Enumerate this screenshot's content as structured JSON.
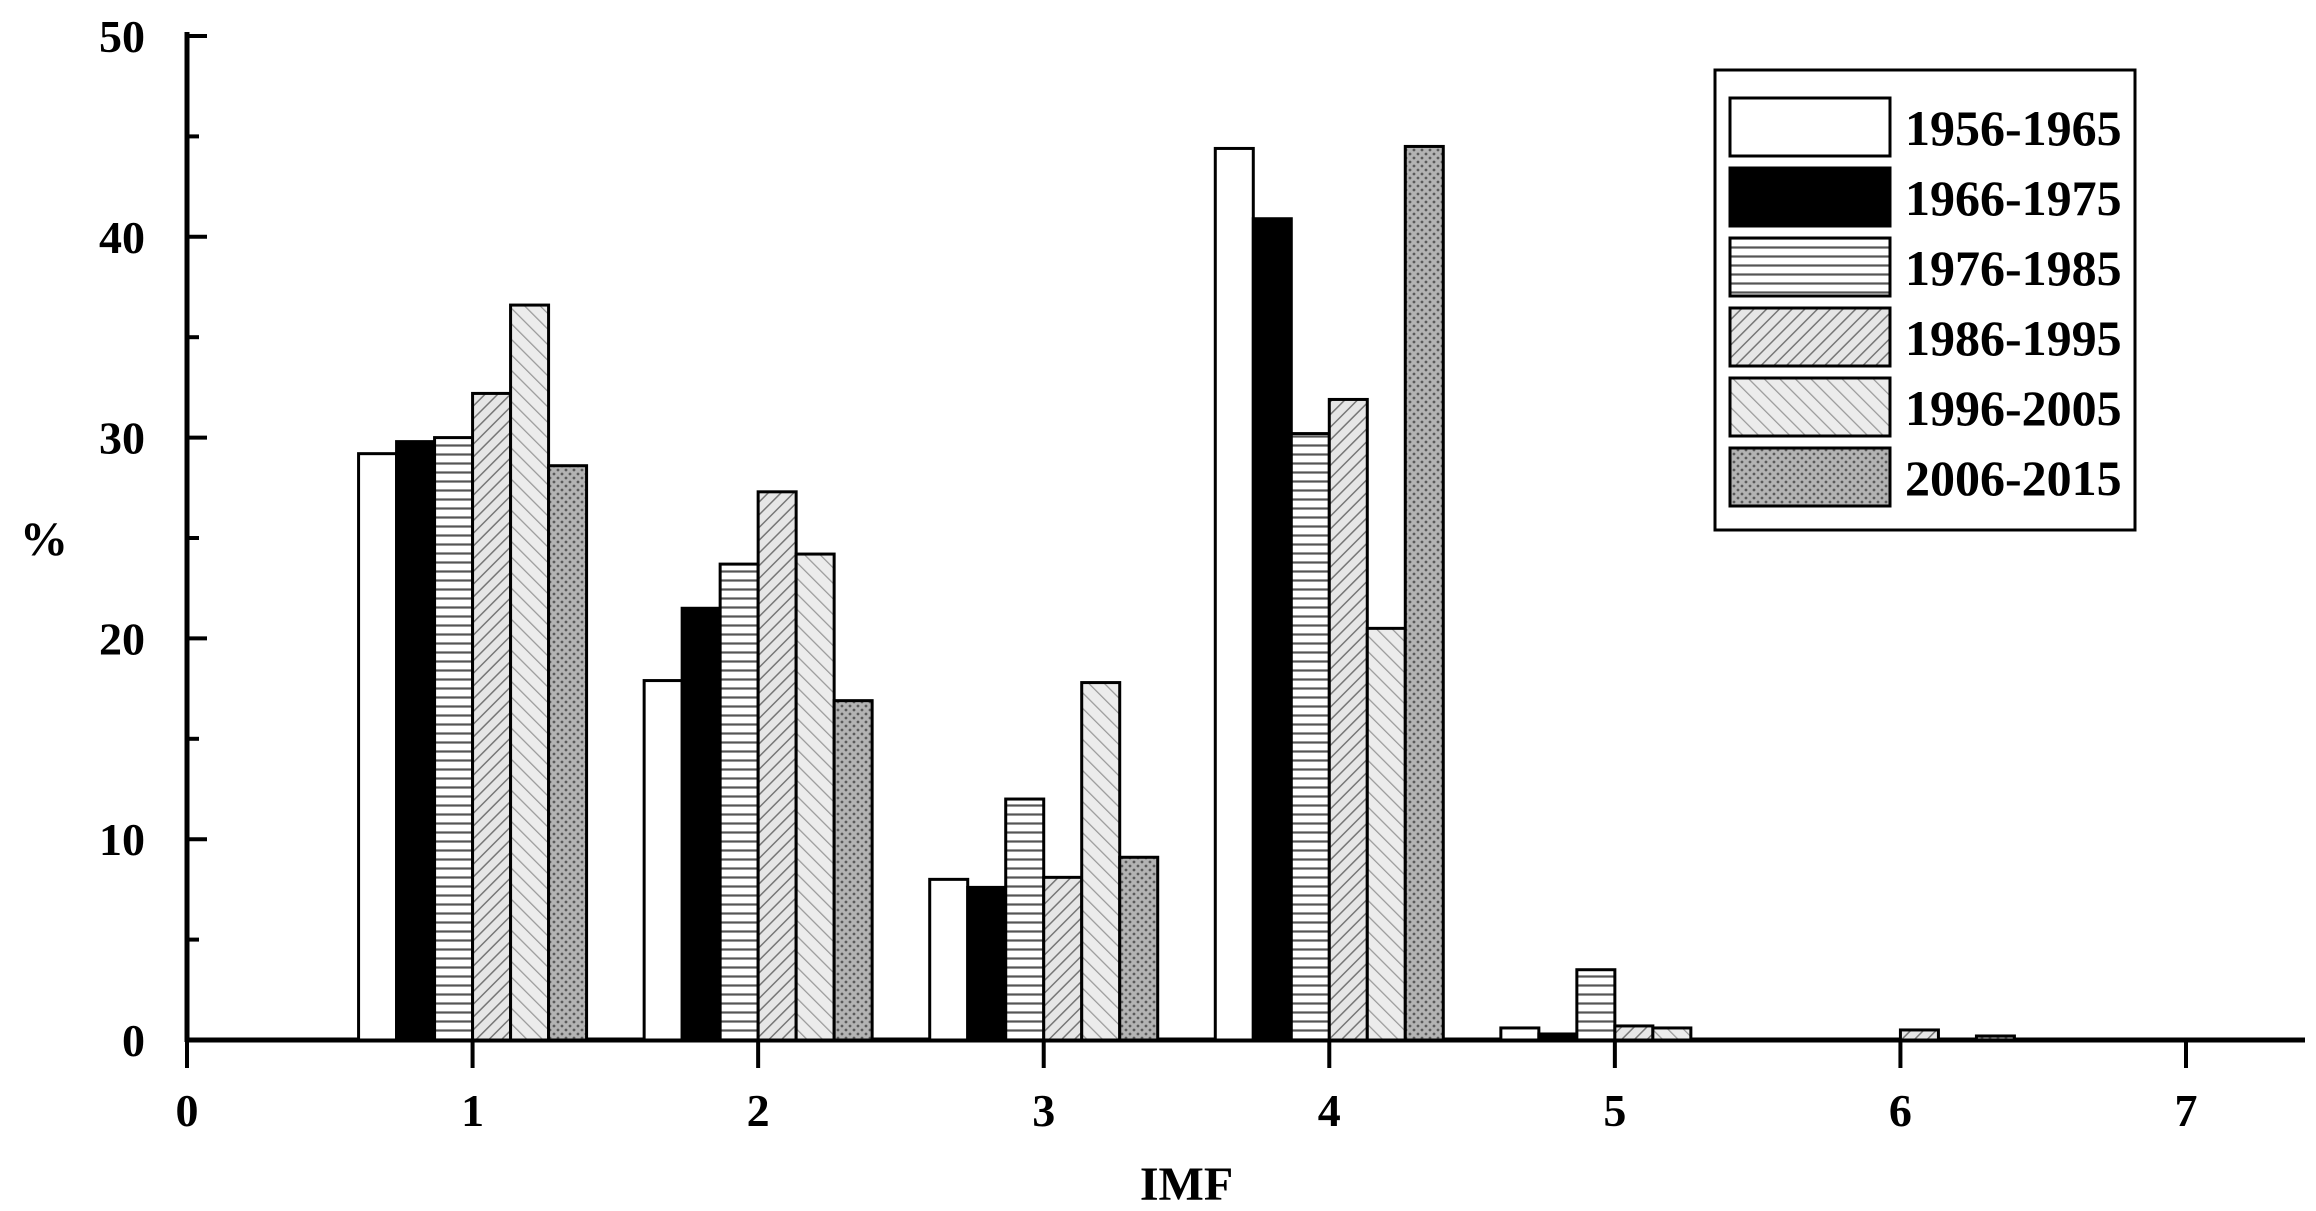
{
  "chart_data": {
    "type": "bar",
    "title": "",
    "xlabel": "IMF",
    "ylabel": "%",
    "xlim": [
      0,
      7
    ],
    "ylim": [
      0,
      50
    ],
    "categories": [
      "1",
      "2",
      "3",
      "4",
      "5",
      "6"
    ],
    "x_ticks": [
      "0",
      "1",
      "2",
      "3",
      "4",
      "5",
      "6",
      "7"
    ],
    "y_ticks": [
      "0",
      "10",
      "20",
      "30",
      "40",
      "50"
    ],
    "grid": false,
    "legend_position": "top-right",
    "series": [
      {
        "name": "1956-1965",
        "fill": "white",
        "values": [
          29.2,
          17.9,
          8.0,
          44.4,
          0.6,
          0.0
        ]
      },
      {
        "name": "1966-1975",
        "fill": "black",
        "values": [
          29.8,
          21.5,
          7.6,
          40.9,
          0.3,
          0.0
        ]
      },
      {
        "name": "1976-1985",
        "fill": "horizontal-lines",
        "values": [
          30.0,
          23.7,
          12.0,
          30.2,
          3.5,
          0.0
        ]
      },
      {
        "name": "1986-1995",
        "fill": "diagonal-lines",
        "values": [
          32.2,
          27.3,
          8.1,
          31.9,
          0.7,
          0.5
        ]
      },
      {
        "name": "1996-2005",
        "fill": "light-diagonal",
        "values": [
          36.6,
          24.2,
          17.8,
          20.5,
          0.6,
          0.0
        ]
      },
      {
        "name": "2006-2015",
        "fill": "dotted-grey",
        "values": [
          28.6,
          16.9,
          9.1,
          44.5,
          0.0,
          0.2
        ]
      }
    ]
  }
}
